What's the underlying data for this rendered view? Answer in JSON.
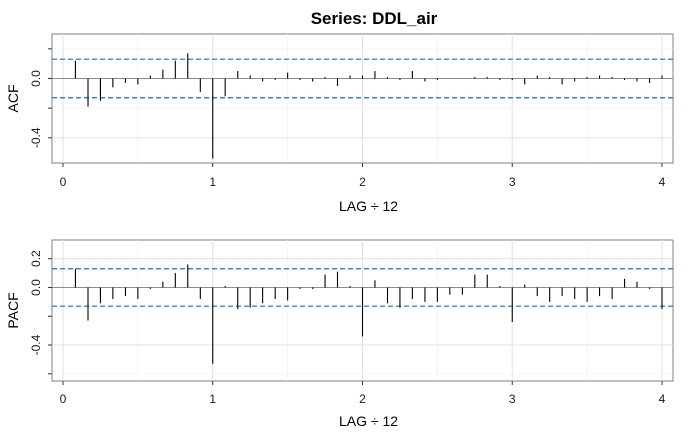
{
  "title": "Series:  DDL_air",
  "chart_data": [
    {
      "type": "bar",
      "name": "acf-panel",
      "ylabel": "ACF",
      "xlabel": "LAG ÷ 12",
      "xlim": [
        0,
        4
      ],
      "ylim": [
        -0.57,
        0.3
      ],
      "x_ticks": [
        0,
        1,
        2,
        3,
        4
      ],
      "y_ticks": [
        0.0,
        -0.4
      ],
      "ci": 0.13,
      "grid": true,
      "lags": [
        0.083,
        0.167,
        0.25,
        0.333,
        0.417,
        0.5,
        0.583,
        0.667,
        0.75,
        0.833,
        0.917,
        1.0,
        1.083,
        1.167,
        1.25,
        1.333,
        1.417,
        1.5,
        1.583,
        1.667,
        1.75,
        1.833,
        1.917,
        2.0,
        2.083,
        2.167,
        2.25,
        2.333,
        2.417,
        2.5,
        2.583,
        2.667,
        2.75,
        2.833,
        2.917,
        3.0,
        3.083,
        3.167,
        3.25,
        3.333,
        3.417,
        3.5,
        3.583,
        3.667,
        3.75,
        3.833,
        3.917,
        4.0
      ],
      "values": [
        0.12,
        -0.19,
        -0.15,
        -0.06,
        -0.03,
        -0.04,
        0.02,
        0.06,
        0.12,
        0.17,
        -0.09,
        -0.54,
        -0.12,
        0.05,
        0.02,
        -0.02,
        -0.01,
        0.04,
        -0.01,
        -0.02,
        0.01,
        -0.05,
        0.02,
        0.02,
        0.05,
        0.01,
        -0.01,
        0.05,
        -0.02,
        -0.01,
        0.0,
        0.0,
        0.01,
        0.01,
        -0.01,
        -0.01,
        -0.04,
        0.02,
        0.01,
        -0.04,
        -0.02,
        0.01,
        0.02,
        0.01,
        -0.01,
        -0.02,
        -0.03,
        0.02
      ]
    },
    {
      "type": "bar",
      "name": "pacf-panel",
      "ylabel": "PACF",
      "xlabel": "LAG ÷ 12",
      "xlim": [
        0,
        4
      ],
      "ylim": [
        -0.65,
        0.33
      ],
      "x_ticks": [
        0,
        1,
        2,
        3,
        4
      ],
      "y_ticks": [
        0.2,
        0.0,
        -0.4
      ],
      "ci": 0.13,
      "grid": true,
      "lags": [
        0.083,
        0.167,
        0.25,
        0.333,
        0.417,
        0.5,
        0.583,
        0.667,
        0.75,
        0.833,
        0.917,
        1.0,
        1.083,
        1.167,
        1.25,
        1.333,
        1.417,
        1.5,
        1.583,
        1.667,
        1.75,
        1.833,
        1.917,
        2.0,
        2.083,
        2.167,
        2.25,
        2.333,
        2.417,
        2.5,
        2.583,
        2.667,
        2.75,
        2.833,
        2.917,
        3.0,
        3.083,
        3.167,
        3.25,
        3.333,
        3.417,
        3.5,
        3.583,
        3.667,
        3.75,
        3.833,
        3.917,
        4.0
      ],
      "values": [
        0.13,
        -0.23,
        -0.11,
        -0.08,
        -0.06,
        -0.08,
        -0.01,
        0.04,
        0.1,
        0.16,
        -0.08,
        -0.53,
        0.01,
        -0.15,
        -0.14,
        -0.11,
        -0.08,
        -0.09,
        -0.01,
        -0.01,
        0.09,
        0.11,
        0.01,
        -0.34,
        0.05,
        -0.11,
        -0.14,
        -0.08,
        -0.1,
        -0.1,
        -0.05,
        -0.05,
        0.09,
        0.09,
        0.01,
        -0.24,
        0.02,
        -0.06,
        -0.1,
        -0.06,
        -0.08,
        -0.1,
        -0.06,
        -0.08,
        0.06,
        0.04,
        -0.01,
        -0.15
      ]
    }
  ]
}
